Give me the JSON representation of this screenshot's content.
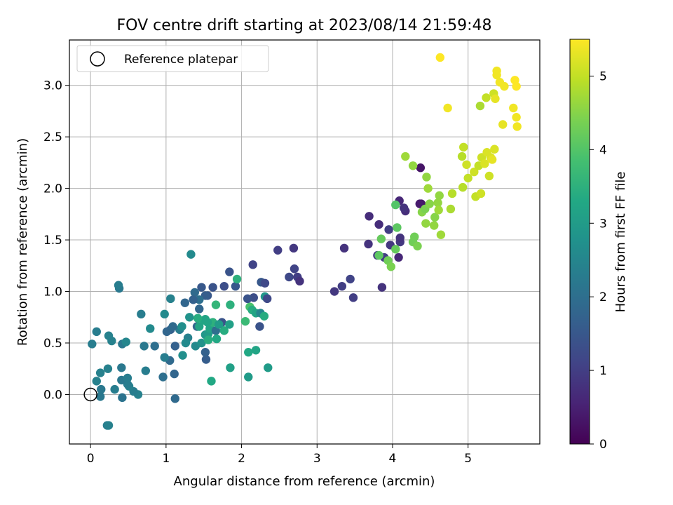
{
  "chart_data": {
    "type": "scatter",
    "title": "FOV centre drift starting at 2023/08/14 21:59:48",
    "xlabel": "Angular distance from reference (arcmin)",
    "ylabel": "Rotation from reference (arcmin)",
    "xlim": [
      -0.28,
      5.95
    ],
    "ylim": [
      -0.48,
      3.44
    ],
    "xticks": [
      "0",
      "1",
      "2",
      "3",
      "4",
      "5"
    ],
    "yticks": [
      "0.0",
      "0.5",
      "1.0",
      "1.5",
      "2.0",
      "2.5",
      "3.0"
    ],
    "grid": true,
    "legend": {
      "position": "top-left",
      "entries": [
        "Reference platepar"
      ]
    },
    "reference_point": {
      "x": 0,
      "y": 0
    },
    "colorbar": {
      "label": "Hours from first FF file",
      "range": [
        0,
        5.5
      ],
      "ticks": [
        "0",
        "1",
        "2",
        "3",
        "4",
        "5"
      ],
      "colormap": "viridis"
    },
    "points": [
      [
        0.22,
        -0.3,
        2.3
      ],
      [
        0.24,
        -0.3,
        2.4
      ],
      [
        1.12,
        -0.04,
        1.9
      ],
      [
        0.42,
        -0.03,
        2.1
      ],
      [
        0.13,
        -0.02,
        2.2
      ],
      [
        0.63,
        0.0,
        2.4
      ],
      [
        0.57,
        0.03,
        2.3
      ],
      [
        0.14,
        0.05,
        2.2
      ],
      [
        0.32,
        0.05,
        2.3
      ],
      [
        0.51,
        0.08,
        2.4
      ],
      [
        0.49,
        0.1,
        2.3
      ],
      [
        0.08,
        0.13,
        2.4
      ],
      [
        0.41,
        0.14,
        2.2
      ],
      [
        0.49,
        0.16,
        2.3
      ],
      [
        0.96,
        0.17,
        2.0
      ],
      [
        1.11,
        0.2,
        1.8
      ],
      [
        0.13,
        0.21,
        2.4
      ],
      [
        0.73,
        0.23,
        2.3
      ],
      [
        0.23,
        0.25,
        2.4
      ],
      [
        0.41,
        0.26,
        2.2
      ],
      [
        1.05,
        0.33,
        1.9
      ],
      [
        0.98,
        0.36,
        2.3
      ],
      [
        1.22,
        0.38,
        2.7
      ],
      [
        1.53,
        0.34,
        1.6
      ],
      [
        1.6,
        0.13,
        3.3
      ],
      [
        1.52,
        0.41,
        1.7
      ],
      [
        0.02,
        0.49,
        2.3
      ],
      [
        0.42,
        0.49,
        2.2
      ],
      [
        0.47,
        0.51,
        2.5
      ],
      [
        0.28,
        0.52,
        2.4
      ],
      [
        0.24,
        0.57,
        2.4
      ],
      [
        0.08,
        0.61,
        2.3
      ],
      [
        0.71,
        0.47,
        2.2
      ],
      [
        0.85,
        0.47,
        2.0
      ],
      [
        0.79,
        0.64,
        2.6
      ],
      [
        1.12,
        0.47,
        1.7
      ],
      [
        1.18,
        0.63,
        2.3
      ],
      [
        1.21,
        0.66,
        2.7
      ],
      [
        1.29,
        0.55,
        2.4
      ],
      [
        1.39,
        0.47,
        2.6
      ],
      [
        1.41,
        0.66,
        1.8
      ],
      [
        1.47,
        0.5,
        2.8
      ],
      [
        1.52,
        0.58,
        2.9
      ],
      [
        1.56,
        0.59,
        3.0
      ],
      [
        1.58,
        0.64,
        3.2
      ],
      [
        1.62,
        0.7,
        3.5
      ],
      [
        1.66,
        0.62,
        2.0
      ],
      [
        1.74,
        0.7,
        1.4
      ],
      [
        1.77,
        0.62,
        3.4
      ],
      [
        1.84,
        0.68,
        3.1
      ],
      [
        1.85,
        0.26,
        3.1
      ],
      [
        2.09,
        0.41,
        3.3
      ],
      [
        2.09,
        0.17,
        3.0
      ],
      [
        2.19,
        0.43,
        3.2
      ],
      [
        2.35,
        0.26,
        3.0
      ],
      [
        2.11,
        0.85,
        3.9
      ],
      [
        2.05,
        0.71,
        3.7
      ],
      [
        2.14,
        0.82,
        3.4
      ],
      [
        2.19,
        0.79,
        3.2
      ],
      [
        2.25,
        0.79,
        2.5
      ],
      [
        2.3,
        0.76,
        3.4
      ],
      [
        2.31,
        0.95,
        2.9
      ],
      [
        2.24,
        0.66,
        1.4
      ],
      [
        2.26,
        1.09,
        1.5
      ],
      [
        2.31,
        1.08,
        1.2
      ],
      [
        2.34,
        0.93,
        1.2
      ],
      [
        2.16,
        0.94,
        1.3
      ],
      [
        2.08,
        0.93,
        1.4
      ],
      [
        1.92,
        1.05,
        1.5
      ],
      [
        1.94,
        1.12,
        3.5
      ],
      [
        1.84,
        1.19,
        1.4
      ],
      [
        1.77,
        1.05,
        1.3
      ],
      [
        1.66,
        0.87,
        3.6
      ],
      [
        1.62,
        1.04,
        1.4
      ],
      [
        1.55,
        0.96,
        1.5
      ],
      [
        1.52,
        0.96,
        1.6
      ],
      [
        1.44,
        0.83,
        1.8
      ],
      [
        1.44,
        0.92,
        2.0
      ],
      [
        1.47,
        1.04,
        1.5
      ],
      [
        1.38,
        0.99,
        1.9
      ],
      [
        1.36,
        0.92,
        1.7
      ],
      [
        1.31,
        0.75,
        2.8
      ],
      [
        1.33,
        1.36,
        2.6
      ],
      [
        1.25,
        0.89,
        1.8
      ],
      [
        1.06,
        0.63,
        1.7
      ],
      [
        1.01,
        0.61,
        1.8
      ],
      [
        1.09,
        0.66,
        1.9
      ],
      [
        0.98,
        0.78,
        2.6
      ],
      [
        1.06,
        0.93,
        2.4
      ],
      [
        0.67,
        0.78,
        2.3
      ],
      [
        0.38,
        1.03,
        2.2
      ],
      [
        0.37,
        1.06,
        2.3
      ],
      [
        2.15,
        1.26,
        1.1
      ],
      [
        2.48,
        1.4,
        1.0
      ],
      [
        2.69,
        1.42,
        0.9
      ],
      [
        2.7,
        1.22,
        1.1
      ],
      [
        2.63,
        1.14,
        1.2
      ],
      [
        2.74,
        1.14,
        1.0
      ],
      [
        2.77,
        1.1,
        0.8
      ],
      [
        3.23,
        1.0,
        0.9
      ],
      [
        3.33,
        1.05,
        1.0
      ],
      [
        3.44,
        1.12,
        1.1
      ],
      [
        3.48,
        0.94,
        1.0
      ],
      [
        3.36,
        1.42,
        0.8
      ],
      [
        3.69,
        1.73,
        0.7
      ],
      [
        3.68,
        1.46,
        0.8
      ],
      [
        3.8,
        1.35,
        0.9
      ],
      [
        3.86,
        1.04,
        0.8
      ],
      [
        3.89,
        1.33,
        1.0
      ],
      [
        3.97,
        1.45,
        0.9
      ],
      [
        3.95,
        1.6,
        1.0
      ],
      [
        3.82,
        1.65,
        0.7
      ],
      [
        4.09,
        1.88,
        0.6
      ],
      [
        4.17,
        1.78,
        0.7
      ],
      [
        4.15,
        1.81,
        0.8
      ],
      [
        4.1,
        1.48,
        0.9
      ],
      [
        4.08,
        1.33,
        0.6
      ],
      [
        4.1,
        1.52,
        0.8
      ],
      [
        4.37,
        2.2,
        0.3
      ],
      [
        4.38,
        1.85,
        0.3
      ],
      [
        4.36,
        1.85,
        0.4
      ],
      [
        4.04,
        1.84,
        4.0
      ],
      [
        4.06,
        1.62,
        4.1
      ],
      [
        3.85,
        1.51,
        4.2
      ],
      [
        3.94,
        1.3,
        4.3
      ],
      [
        3.98,
        1.24,
        4.4
      ],
      [
        4.04,
        1.41,
        4.2
      ],
      [
        3.82,
        1.35,
        4.1
      ],
      [
        4.27,
        1.48,
        4.3
      ],
      [
        4.33,
        1.44,
        4.4
      ],
      [
        4.29,
        1.53,
        4.3
      ],
      [
        4.39,
        1.77,
        4.5
      ],
      [
        4.43,
        1.8,
        4.4
      ],
      [
        4.49,
        1.85,
        4.5
      ],
      [
        4.44,
        1.66,
        4.6
      ],
      [
        4.55,
        1.64,
        4.6
      ],
      [
        4.56,
        1.72,
        4.5
      ],
      [
        4.6,
        1.86,
        4.6
      ],
      [
        4.61,
        1.79,
        4.7
      ],
      [
        4.62,
        1.93,
        4.6
      ],
      [
        4.64,
        1.55,
        4.7
      ],
      [
        4.77,
        1.8,
        4.8
      ],
      [
        4.79,
        1.95,
        4.9
      ],
      [
        4.47,
        2.0,
        4.7
      ],
      [
        4.45,
        2.11,
        4.6
      ],
      [
        4.27,
        2.22,
        4.6
      ],
      [
        4.17,
        2.31,
        4.7
      ],
      [
        4.93,
        2.01,
        4.9
      ],
      [
        4.92,
        2.31,
        4.9
      ],
      [
        4.94,
        2.4,
        5.0
      ],
      [
        4.98,
        2.23,
        5.1
      ],
      [
        5.0,
        2.1,
        5.0
      ],
      [
        5.08,
        2.16,
        5.1
      ],
      [
        5.1,
        1.92,
        5.0
      ],
      [
        5.14,
        2.22,
        5.0
      ],
      [
        5.17,
        1.95,
        5.1
      ],
      [
        5.18,
        2.3,
        5.1
      ],
      [
        5.22,
        2.24,
        5.2
      ],
      [
        5.25,
        2.35,
        5.2
      ],
      [
        5.28,
        2.12,
        5.1
      ],
      [
        5.3,
        2.3,
        5.2
      ],
      [
        5.32,
        2.28,
        5.3
      ],
      [
        5.35,
        2.38,
        5.2
      ],
      [
        5.16,
        2.8,
        4.8
      ],
      [
        5.24,
        2.88,
        5.0
      ],
      [
        5.34,
        2.92,
        5.1
      ],
      [
        5.36,
        2.87,
        5.3
      ],
      [
        5.42,
        3.03,
        5.4
      ],
      [
        5.38,
        3.1,
        5.4
      ],
      [
        5.38,
        3.14,
        5.4
      ],
      [
        5.48,
        2.99,
        5.4
      ],
      [
        5.46,
        2.62,
        5.3
      ],
      [
        5.6,
        2.78,
        5.4
      ],
      [
        5.62,
        3.05,
        5.5
      ],
      [
        5.64,
        2.99,
        5.5
      ],
      [
        5.64,
        2.69,
        5.4
      ],
      [
        5.65,
        2.6,
        5.4
      ],
      [
        4.73,
        2.78,
        5.4
      ],
      [
        4.63,
        3.27,
        5.5
      ],
      [
        1.85,
        0.87,
        3.5
      ],
      [
        1.67,
        0.54,
        3.3
      ],
      [
        1.55,
        0.7,
        3.2
      ],
      [
        1.5,
        0.72,
        3.3
      ],
      [
        1.44,
        0.66,
        3.2
      ],
      [
        1.56,
        0.53,
        3.4
      ],
      [
        1.7,
        0.68,
        3.0
      ],
      [
        1.52,
        0.73,
        3.2
      ],
      [
        1.42,
        0.74,
        3.4
      ],
      [
        1.26,
        0.5,
        2.6
      ]
    ]
  }
}
